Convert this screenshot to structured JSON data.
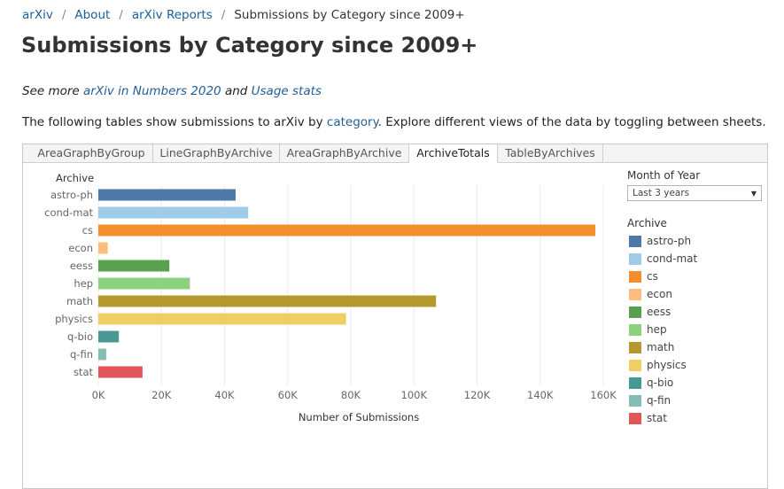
{
  "breadcrumb": {
    "items": [
      "arXiv",
      "About",
      "arXiv Reports"
    ],
    "current": "Submissions by Category since 2009+"
  },
  "page_title": "Submissions by Category since 2009+",
  "see_more": {
    "prefix": "See more ",
    "link1": "arXiv in Numbers 2020",
    "middle": " and ",
    "link2": "Usage stats"
  },
  "intro": {
    "before": "The following tables show submissions to arXiv by ",
    "link": "category",
    "after": ". Explore different views of the data by toggling between sheets."
  },
  "tabs": [
    {
      "label": "AreaGraphByGroup",
      "active": false
    },
    {
      "label": "LineGraphByArchive",
      "active": false
    },
    {
      "label": "AreaGraphByArchive",
      "active": false
    },
    {
      "label": "ArchiveTotals",
      "active": true
    },
    {
      "label": "TableByArchives",
      "active": false
    }
  ],
  "filter": {
    "title": "Month of Year",
    "selected": "Last 3 years"
  },
  "legend": {
    "title": "Archive"
  },
  "chart_data": {
    "type": "bar",
    "orientation": "horizontal",
    "title": "",
    "ylabel": "Archive",
    "xlabel": "Number of Submissions",
    "xlim": [
      0,
      160000
    ],
    "x_ticks": [
      "0K",
      "20K",
      "40K",
      "60K",
      "80K",
      "100K",
      "120K",
      "140K",
      "160K"
    ],
    "grid": true,
    "legend_position": "right",
    "categories": [
      "astro-ph",
      "cond-mat",
      "cs",
      "econ",
      "eess",
      "hep",
      "math",
      "physics",
      "q-bio",
      "q-fin",
      "stat"
    ],
    "values": [
      43500,
      47500,
      157500,
      3000,
      22500,
      29000,
      107000,
      78500,
      6500,
      2500,
      14000
    ],
    "colors": [
      "#4e79a7",
      "#a0cbe8",
      "#f28e2b",
      "#ffbe7d",
      "#59a14f",
      "#8cd17d",
      "#b6992d",
      "#f1ce63",
      "#499894",
      "#86bcb6",
      "#e15759"
    ]
  }
}
